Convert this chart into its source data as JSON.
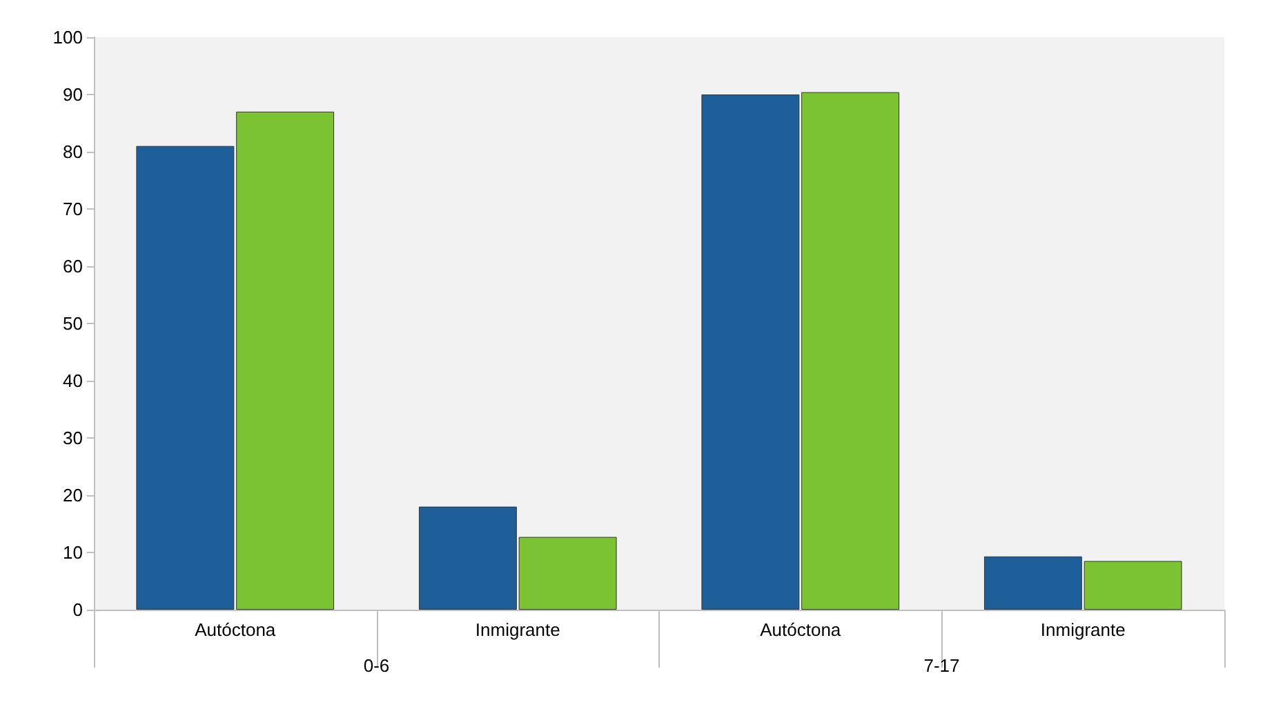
{
  "chart_data": {
    "type": "bar",
    "categories": [
      "Autóctona",
      "Inmigrante",
      "Autóctona",
      "Inmigrante"
    ],
    "series": [
      {
        "color": "#1f5f99",
        "values": [
          81,
          18,
          90,
          9.3
        ]
      },
      {
        "color": "#7cc334",
        "values": [
          87,
          12.7,
          90.4,
          8.5
        ]
      }
    ],
    "annotations": [
      "0-6",
      "7-17"
    ],
    "ylim": [
      0,
      100
    ],
    "yticks": [
      0,
      10,
      20,
      30,
      40,
      50,
      60,
      70,
      80,
      90,
      100
    ],
    "grid": false
  }
}
